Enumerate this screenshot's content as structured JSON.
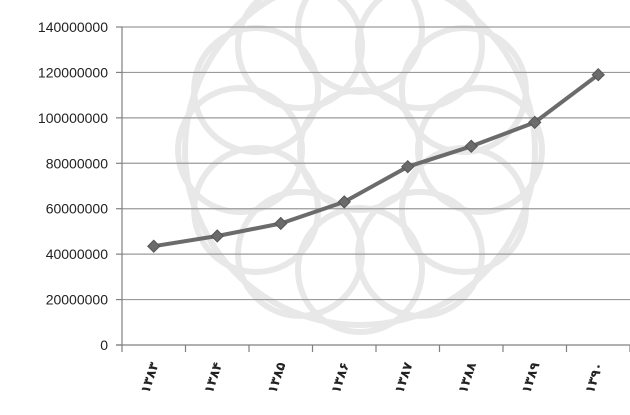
{
  "chart_data": {
    "type": "line",
    "title": "",
    "xlabel": "",
    "ylabel": "",
    "categories": [
      "۱۳۸۳",
      "۱۳۸۴",
      "۱۳۸۵",
      "۱۳۸۶",
      "۱۳۸۷",
      "۱۳۸۸",
      "۱۳۸۹",
      "۱۳۹۰"
    ],
    "series": [
      {
        "values": [
          43500000,
          48000000,
          53500000,
          63000000,
          78500000,
          87500000,
          98000000,
          119000000
        ]
      }
    ],
    "ylim": [
      0,
      140000000
    ],
    "yticks": [
      "0",
      "20000000",
      "40000000",
      "60000000",
      "80000000",
      "100000000",
      "120000000",
      "140000000"
    ],
    "grid": "horizontal",
    "legend": "none",
    "colors": {
      "line": "#6b6b6b",
      "marker": "#6b6b6b",
      "grid": "#9a9a9a",
      "axis": "#808080",
      "watermark": "#d9d9d9"
    }
  }
}
